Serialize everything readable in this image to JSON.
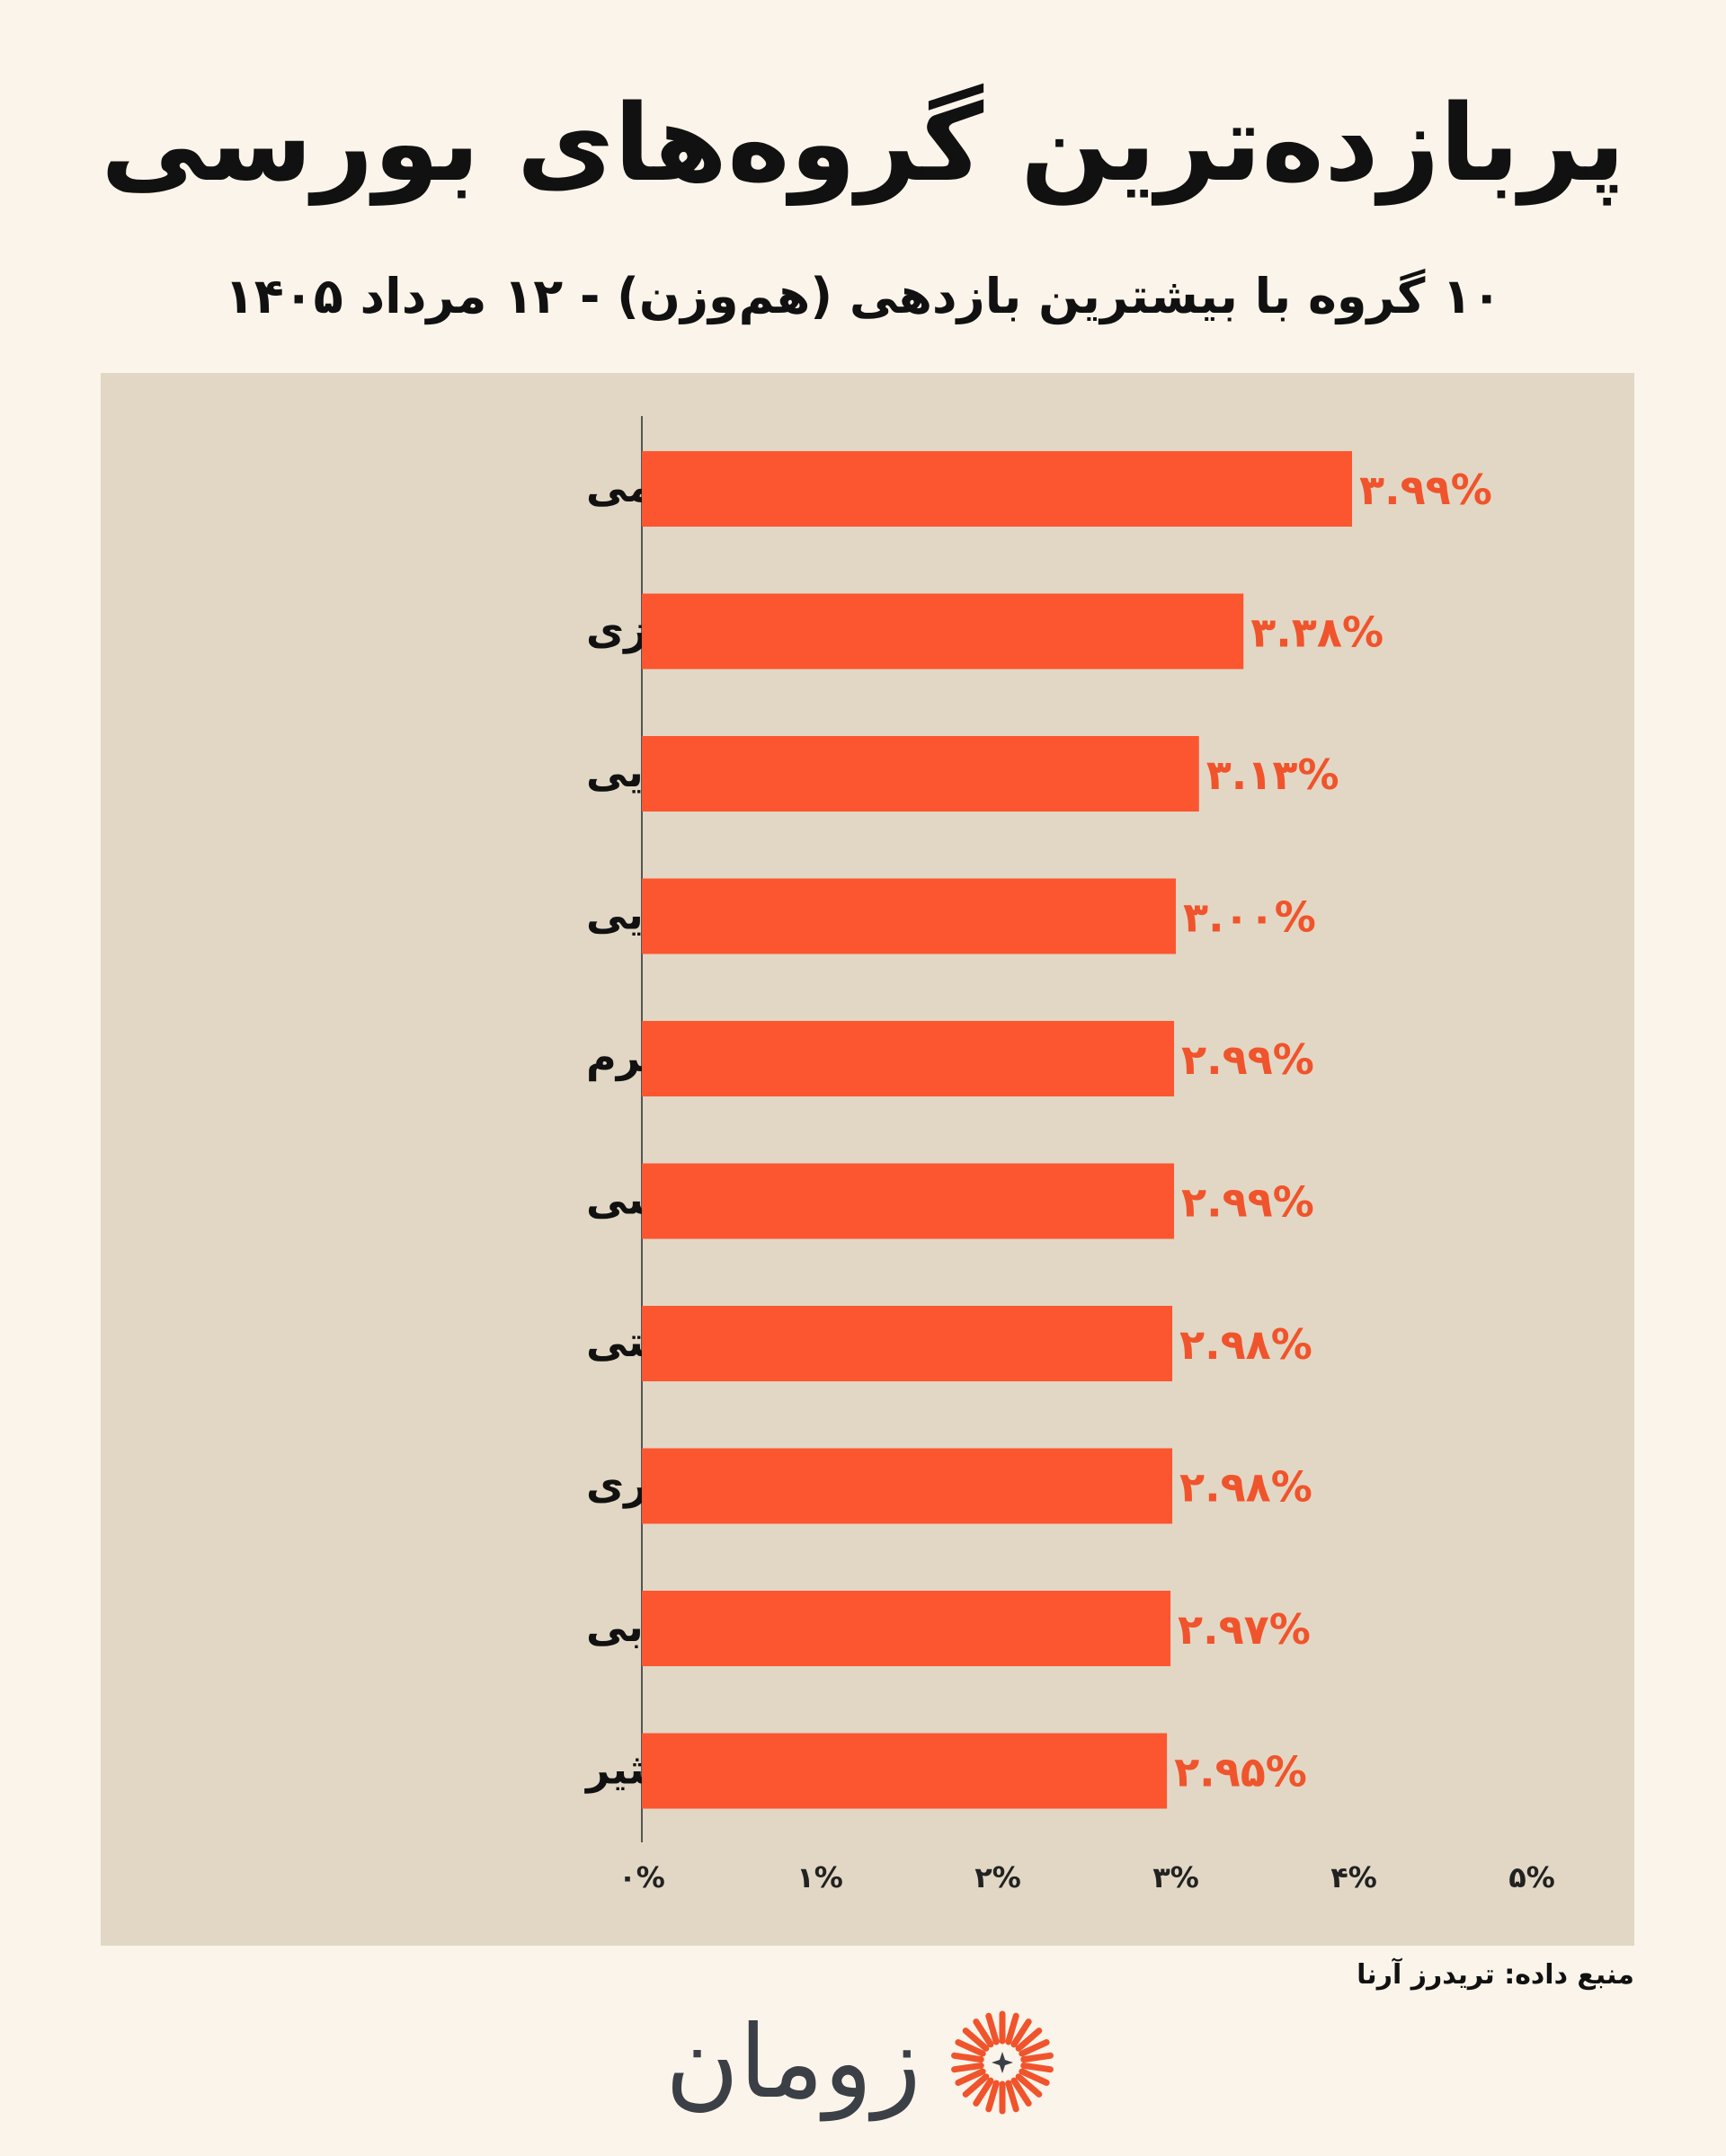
{
  "title": "پربازده‌ترین گروه‌های بورسی",
  "subtitle": "۱۰ گروه با بیشترین بازدهی (هم‌وزن) - ۱۲ مرداد ۱۴۰۵",
  "source": "منبع داده: تریدرز آرنا",
  "brand": {
    "name": "زومان",
    "accent_color": "#f0542c",
    "text_color": "#3b3f46"
  },
  "colors": {
    "background": "#fbf4ea",
    "panel": "#e2d7c4",
    "bar": "#fb5630",
    "value_label": "#f0542c",
    "axis": "#555555"
  },
  "chart_data": {
    "type": "bar",
    "orientation": "horizontal",
    "categories": [
      "صندوق‌های اهرمی",
      "ساخت محصولات فلزی",
      "محصولات غذایی",
      "محصولات شیمیایی",
      "صنایع چرم",
      "عمده فروشی",
      "پیمانکاری صنعتی",
      "محصولات کامپیوتری",
      "حمل و نقل آبی",
      "انتشار، چاپ و تکثیر"
    ],
    "values": [
      3.99,
      3.38,
      3.13,
      3.0,
      2.99,
      2.99,
      2.98,
      2.98,
      2.97,
      2.95
    ],
    "value_labels": [
      "۳.۹۹%",
      "۳.۳۸%",
      "۳.۱۳%",
      "۳.۰۰%",
      "۲.۹۹%",
      "۲.۹۹%",
      "۲.۹۸%",
      "۲.۹۸%",
      "۲.۹۷%",
      "۲.۹۵%"
    ],
    "xlim": [
      0,
      5
    ],
    "x_ticks": [
      0,
      1,
      2,
      3,
      4,
      5
    ],
    "x_tick_labels": [
      "۰%",
      "۱%",
      "۲%",
      "۳%",
      "۴%",
      "۵%"
    ],
    "grid": false,
    "legend": "none"
  }
}
